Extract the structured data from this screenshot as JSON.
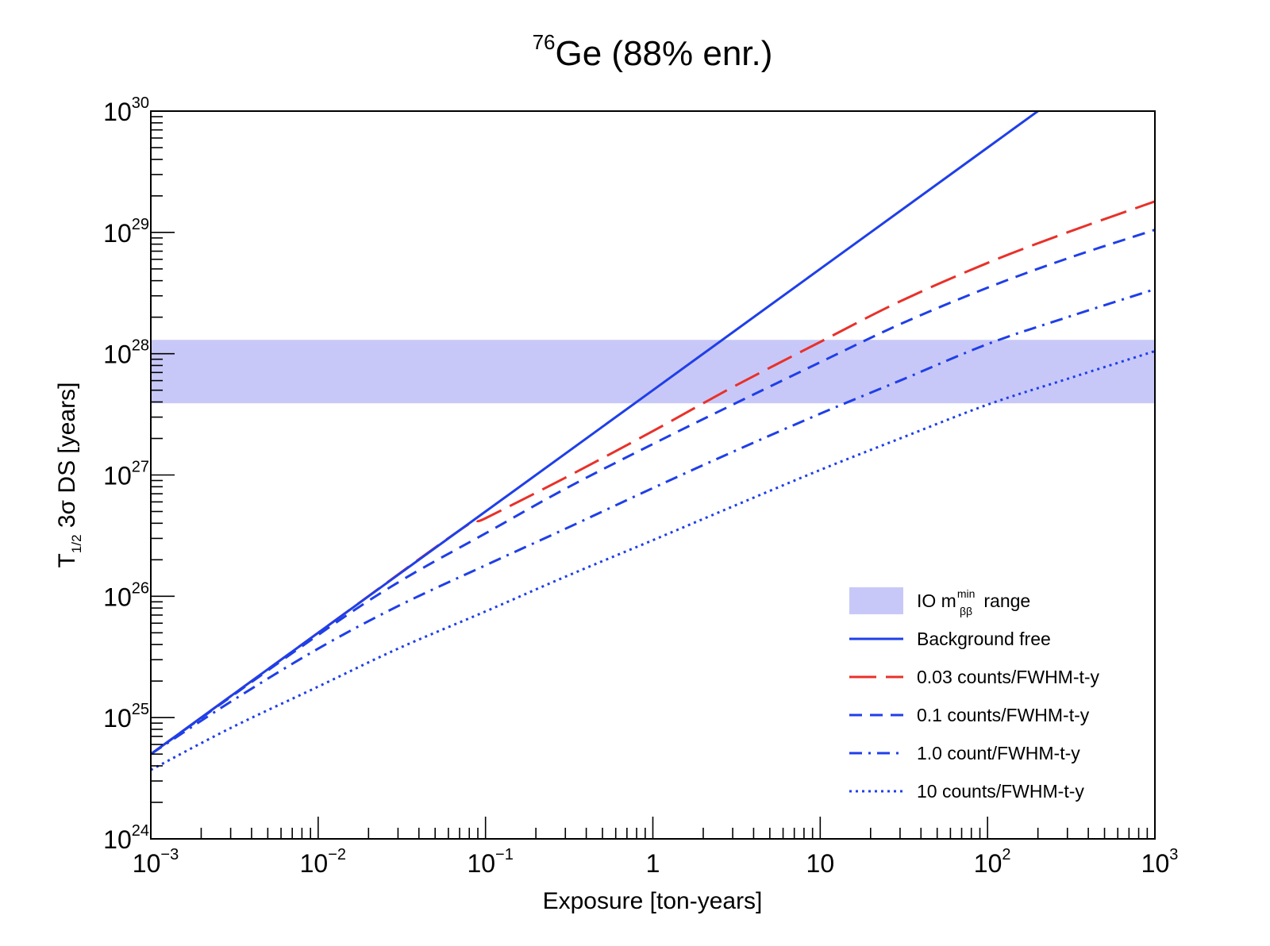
{
  "chart_data": {
    "type": "line",
    "title": {
      "sup": "76",
      "main": "Ge (88% enr.)"
    },
    "xlabel": "Exposure [ton-years]",
    "ylabel": {
      "pre": "T",
      "sub": "1/2",
      "post": " 3σ DS [years]"
    },
    "x_scale": "log",
    "y_scale": "log",
    "xlim": [
      0.001,
      1000
    ],
    "ylim": [
      1e+24,
      1e+30
    ],
    "x_ticks": [
      {
        "value": 0.001,
        "base": "10",
        "exp": "−3"
      },
      {
        "value": 0.01,
        "base": "10",
        "exp": "−2"
      },
      {
        "value": 0.1,
        "base": "10",
        "exp": "−1"
      },
      {
        "value": 1,
        "base": "1",
        "exp": ""
      },
      {
        "value": 10,
        "base": "10",
        "exp": ""
      },
      {
        "value": 100,
        "base": "10",
        "exp": "2"
      },
      {
        "value": 1000,
        "base": "10",
        "exp": "3"
      }
    ],
    "y_ticks": [
      {
        "value": 1e+24,
        "base": "10",
        "exp": "24"
      },
      {
        "value": 1e+25,
        "base": "10",
        "exp": "25"
      },
      {
        "value": 1e+26,
        "base": "10",
        "exp": "26"
      },
      {
        "value": 1e+27,
        "base": "10",
        "exp": "27"
      },
      {
        "value": 1e+28,
        "base": "10",
        "exp": "28"
      },
      {
        "value": 1e+29,
        "base": "10",
        "exp": "29"
      },
      {
        "value": 1e+30,
        "base": "10",
        "exp": "30"
      }
    ],
    "band": {
      "label": {
        "pre": "IO m",
        "sup": "min",
        "sub": "ββ",
        "post": " range"
      },
      "y_range": [
        3.9e+27,
        1.3e+28
      ],
      "color": "#c8c8f8"
    },
    "series": [
      {
        "name": "Background free",
        "color": "#1f3fe8",
        "style": "solid",
        "x": [
          0.001,
          0.01,
          0.1,
          1,
          10,
          100,
          200
        ],
        "y": [
          5e+24,
          5e+25,
          5e+26,
          5e+27,
          5e+28,
          5e+29,
          1e+30
        ]
      },
      {
        "name": "0.03 counts/FWHM-t-y",
        "color": "#e8312a",
        "style": "longdash",
        "x": [
          0.001,
          0.01,
          0.07,
          0.1,
          0.3,
          1,
          3,
          10,
          30,
          100,
          300,
          1000
        ],
        "y": [
          5e+24,
          5e+25,
          3.5e+26,
          4.4e+26,
          9.5e+26,
          2.3e+27,
          5.3e+27,
          1.25e+28,
          2.7e+28,
          5.6e+28,
          1e+29,
          1.8e+29
        ]
      },
      {
        "name": "0.1 counts/FWHM-t-y",
        "color": "#1f3fe8",
        "style": "dash",
        "x": [
          0.001,
          0.01,
          0.03,
          0.1,
          0.3,
          1,
          3,
          10,
          30,
          100,
          300,
          1000
        ],
        "y": [
          5e+24,
          4.8e+25,
          1.3e+26,
          3.3e+26,
          7.7e+26,
          1.8e+27,
          3.8e+27,
          8.5e+27,
          1.75e+28,
          3.5e+28,
          6.1e+28,
          1.05e+29
        ]
      },
      {
        "name": "1.0 count/FWHM-t-y",
        "color": "#1f3fe8",
        "style": "dashdot",
        "x": [
          0.001,
          0.003,
          0.01,
          0.03,
          0.1,
          0.3,
          1,
          3,
          10,
          30,
          100,
          300,
          1000
        ],
        "y": [
          5e+24,
          1.35e+25,
          3.7e+25,
          8.3e+25,
          1.8e+26,
          3.6e+26,
          7.8e+26,
          1.55e+27,
          3.2e+27,
          6e+27,
          1.2e+28,
          2e+28,
          3.4e+28
        ]
      },
      {
        "name": "10 counts/FWHM-t-y",
        "color": "#1f3fe8",
        "style": "dot",
        "x": [
          0.001,
          0.003,
          0.01,
          0.03,
          0.1,
          0.3,
          1,
          3,
          10,
          30,
          100,
          300,
          1000
        ],
        "y": [
          3.7e+24,
          8.2e+24,
          1.8e+25,
          3.7e+25,
          7.5e+25,
          1.45e+26,
          2.9e+26,
          5.5e+26,
          1.1e+27,
          2e+27,
          3.8e+27,
          6.2e+27,
          1.05e+28
        ]
      }
    ],
    "legend": "bottom-right",
    "grid": false
  }
}
